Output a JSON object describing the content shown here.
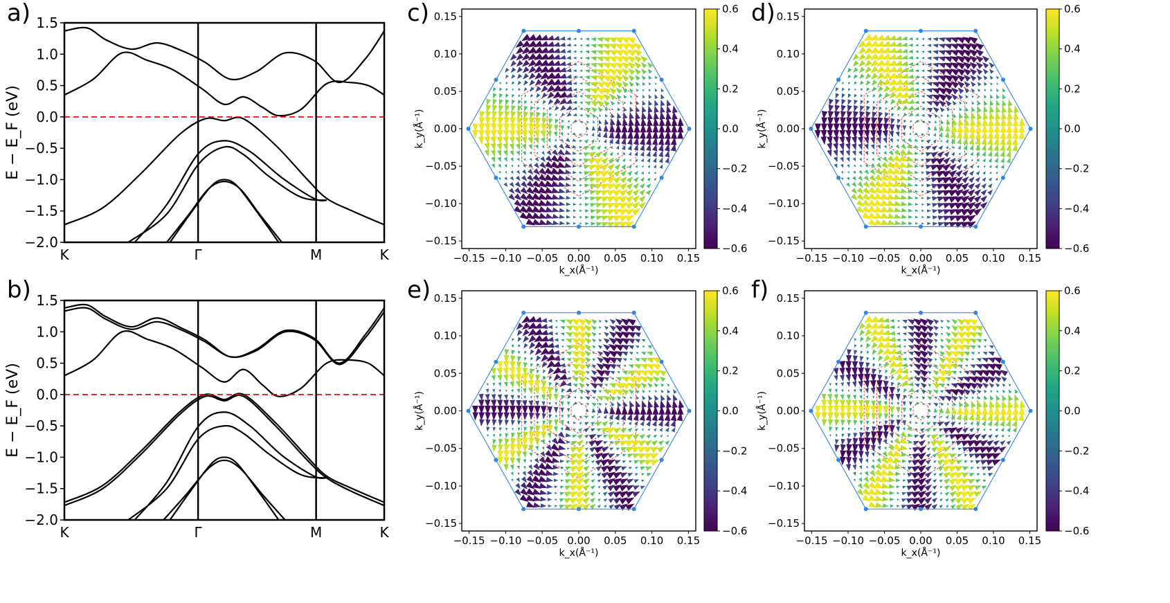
{
  "chart_data": [
    {
      "panel": "a)",
      "type": "line",
      "ylabel": "E − E_F (eV)",
      "ylim": [
        -2.0,
        1.5
      ],
      "yticks": [
        "1.5",
        "1.0",
        "0.5",
        "0.0",
        "−0.5",
        "−1.0",
        "−1.5",
        "−2.0"
      ],
      "kpoint_labels": [
        "K",
        "Γ",
        "M",
        "K"
      ],
      "fermi_level": 0.0,
      "series": [
        {
          "x": [
            0,
            0.07,
            0.13,
            0.21,
            0.29,
            0.37,
            0.44,
            0.52,
            0.6,
            0.69,
            0.78,
            0.86,
            0.94,
            1.0
          ],
          "y": [
            1.37,
            1.42,
            1.23,
            1.08,
            1.18,
            1.05,
            0.87,
            0.6,
            0.72,
            1.02,
            0.9,
            0.55,
            0.92,
            1.37
          ]
        },
        {
          "x": [
            0,
            0.09,
            0.18,
            0.26,
            0.34,
            0.43,
            0.5,
            0.56,
            0.62,
            0.67,
            0.74,
            0.82,
            0.89,
            0.95,
            1.0
          ],
          "y": [
            0.35,
            0.6,
            1.02,
            0.9,
            0.75,
            0.45,
            0.2,
            0.32,
            0.15,
            0.02,
            0.12,
            0.53,
            0.55,
            0.5,
            0.35
          ]
        },
        {
          "x": [
            0,
            0.12,
            0.24,
            0.36,
            0.44,
            0.5,
            0.56,
            0.66,
            0.76,
            0.82,
            0.9,
            1.0
          ],
          "y": [
            -1.72,
            -1.45,
            -0.9,
            -0.28,
            -0.03,
            -0.06,
            -0.03,
            -0.45,
            -1.0,
            -1.3,
            -1.5,
            -1.72
          ]
        },
        {
          "x": [
            0.22,
            0.32,
            0.42,
            0.5,
            0.58,
            0.68,
            0.78,
            0.82
          ],
          "y": [
            -2.0,
            -1.4,
            -0.58,
            -0.38,
            -0.55,
            -0.97,
            -1.3,
            -1.33
          ]
        },
        {
          "x": [
            0.2,
            0.32,
            0.42,
            0.5,
            0.56,
            0.64,
            0.74,
            0.82
          ],
          "y": [
            -2.0,
            -1.55,
            -0.75,
            -0.48,
            -0.6,
            -0.95,
            -1.28,
            -1.33
          ]
        },
        {
          "x": [
            0.33,
            0.4,
            0.46,
            0.5,
            0.54,
            0.6,
            0.67
          ],
          "y": [
            -2.0,
            -1.5,
            -1.1,
            -1.0,
            -1.1,
            -1.5,
            -2.0
          ]
        },
        {
          "x": [
            0.32,
            0.39,
            0.45,
            0.5,
            0.55,
            0.61,
            0.68
          ],
          "y": [
            -2.0,
            -1.55,
            -1.15,
            -1.03,
            -1.15,
            -1.55,
            -2.0
          ]
        }
      ]
    },
    {
      "panel": "b)",
      "type": "line",
      "ylabel": "E − E_F (eV)",
      "ylim": [
        -2.0,
        1.5
      ],
      "yticks": [
        "1.5",
        "1.0",
        "0.5",
        "0.0",
        "−0.5",
        "−1.0",
        "−1.5",
        "−2.0"
      ],
      "kpoint_labels": [
        "K",
        "Γ",
        "M",
        "K"
      ],
      "fermi_level": 0.0,
      "series": [
        {
          "x": [
            0,
            0.07,
            0.13,
            0.21,
            0.29,
            0.37,
            0.44,
            0.52,
            0.6,
            0.69,
            0.78,
            0.86,
            0.94,
            1.0
          ],
          "y": [
            1.38,
            1.43,
            1.24,
            1.08,
            1.22,
            1.05,
            0.87,
            0.6,
            0.72,
            1.02,
            0.9,
            0.5,
            0.95,
            1.38
          ]
        },
        {
          "x": [
            0,
            0.07,
            0.13,
            0.21,
            0.29,
            0.37,
            0.44,
            0.52,
            0.6,
            0.69,
            0.78,
            0.86,
            0.94,
            1.0
          ],
          "y": [
            1.33,
            1.38,
            1.2,
            1.04,
            1.16,
            1.02,
            0.84,
            0.6,
            0.7,
            1.0,
            0.88,
            0.48,
            0.9,
            1.32
          ]
        },
        {
          "x": [
            0,
            0.09,
            0.18,
            0.26,
            0.34,
            0.43,
            0.5,
            0.56,
            0.62,
            0.67,
            0.74,
            0.82,
            0.89,
            0.95,
            1.0
          ],
          "y": [
            0.3,
            0.55,
            1.0,
            0.88,
            0.73,
            0.43,
            0.2,
            0.4,
            0.15,
            -0.03,
            0.1,
            0.5,
            0.55,
            0.5,
            0.3
          ]
        },
        {
          "x": [
            0,
            0.12,
            0.24,
            0.36,
            0.44,
            0.5,
            0.56,
            0.66,
            0.76,
            0.82,
            0.9,
            1.0
          ],
          "y": [
            -1.72,
            -1.45,
            -0.9,
            -0.28,
            0.0,
            -0.08,
            0.0,
            -0.45,
            -1.0,
            -1.3,
            -1.5,
            -1.72
          ]
        },
        {
          "x": [
            0,
            0.12,
            0.24,
            0.36,
            0.44,
            0.5,
            0.56,
            0.66,
            0.76,
            0.82,
            0.9,
            1.0
          ],
          "y": [
            -1.77,
            -1.5,
            -0.95,
            -0.32,
            -0.03,
            -0.1,
            -0.03,
            -0.5,
            -1.05,
            -1.33,
            -1.55,
            -1.77
          ]
        },
        {
          "x": [
            0.22,
            0.32,
            0.42,
            0.5,
            0.58,
            0.68,
            0.78,
            0.82
          ],
          "y": [
            -2.0,
            -1.4,
            -0.5,
            -0.28,
            -0.5,
            -0.97,
            -1.3,
            -1.33
          ]
        },
        {
          "x": [
            0.2,
            0.32,
            0.42,
            0.5,
            0.56,
            0.64,
            0.74,
            0.82
          ],
          "y": [
            -2.0,
            -1.5,
            -0.7,
            -0.5,
            -0.62,
            -0.95,
            -1.28,
            -1.33
          ]
        },
        {
          "x": [
            0.33,
            0.4,
            0.46,
            0.5,
            0.54,
            0.6,
            0.67
          ],
          "y": [
            -2.0,
            -1.5,
            -1.1,
            -1.0,
            -1.1,
            -1.5,
            -2.0
          ]
        },
        {
          "x": [
            0.31,
            0.38,
            0.45,
            0.5,
            0.55,
            0.62,
            0.69
          ],
          "y": [
            -2.0,
            -1.6,
            -1.18,
            -1.05,
            -1.18,
            -1.6,
            -2.0
          ]
        }
      ]
    },
    {
      "panel": "c)",
      "type": "quiver",
      "xlabel": "k_x(Å⁻¹)",
      "ylabel": "k_y(Å⁻¹)",
      "xlim": [
        -0.16,
        0.16
      ],
      "ylim": [
        -0.16,
        0.16
      ],
      "xticks": [
        "−0.15",
        "−0.10",
        "−0.05",
        "0.00",
        "0.05",
        "0.10",
        "0.15"
      ],
      "yticks": [
        "0.15",
        "0.10",
        "0.05",
        "0.00",
        "−0.05",
        "−0.10",
        "−0.15"
      ],
      "colorbar": {
        "range": [
          -0.6,
          0.6
        ],
        "ticks": [
          "0.6",
          "0.4",
          "0.2",
          "0.0",
          "−0.2",
          "−0.4",
          "−0.6"
        ],
        "colormap": "viridis"
      },
      "brillouin_zone_radius": 0.151,
      "sign_pattern": "sin3phi",
      "sign": 1
    },
    {
      "panel": "d)",
      "type": "quiver",
      "xlabel": "k_x(Å⁻¹)",
      "ylabel": "k_y(Å⁻¹)",
      "xlim": [
        -0.16,
        0.16
      ],
      "ylim": [
        -0.16,
        0.16
      ],
      "xticks": [
        "−0.15",
        "−0.10",
        "−0.05",
        "0.00",
        "0.05",
        "0.10",
        "0.15"
      ],
      "yticks": [
        "0.15",
        "0.10",
        "0.05",
        "0.00",
        "−0.05",
        "−0.10",
        "−0.15"
      ],
      "colorbar": {
        "range": [
          -0.6,
          0.6
        ],
        "ticks": [
          "0.6",
          "0.4",
          "0.2",
          "0.0",
          "−0.2",
          "−0.4",
          "−0.6"
        ],
        "colormap": "viridis"
      },
      "brillouin_zone_radius": 0.151,
      "sign_pattern": "sin3phi",
      "sign": -1
    },
    {
      "panel": "e)",
      "type": "quiver",
      "xlabel": "k_x(Å⁻¹)",
      "ylabel": "k_y(Å⁻¹)",
      "xlim": [
        -0.16,
        0.16
      ],
      "ylim": [
        -0.16,
        0.16
      ],
      "xticks": [
        "−0.15",
        "−0.10",
        "−0.05",
        "0.00",
        "0.05",
        "0.10",
        "0.15"
      ],
      "yticks": [
        "0.15",
        "0.10",
        "0.05",
        "0.00",
        "−0.05",
        "−0.10",
        "−0.15"
      ],
      "colorbar": {
        "range": [
          -0.6,
          0.6
        ],
        "ticks": [
          "0.6",
          "0.4",
          "0.2",
          "0.0",
          "−0.2",
          "−0.4",
          "−0.6"
        ],
        "colormap": "viridis"
      },
      "brillouin_zone_radius": 0.151,
      "sign_pattern": "cos6phi",
      "sign": 1
    },
    {
      "panel": "f)",
      "type": "quiver",
      "xlabel": "k_x(Å⁻¹)",
      "ylabel": "k_y(Å⁻¹)",
      "xlim": [
        -0.16,
        0.16
      ],
      "ylim": [
        -0.16,
        0.16
      ],
      "xticks": [
        "−0.15",
        "−0.10",
        "−0.05",
        "0.00",
        "0.05",
        "0.10",
        "0.15"
      ],
      "yticks": [
        "0.15",
        "0.10",
        "0.05",
        "0.00",
        "−0.05",
        "−0.10",
        "−0.15"
      ],
      "colorbar": {
        "range": [
          -0.6,
          0.6
        ],
        "ticks": [
          "0.6",
          "0.4",
          "0.2",
          "0.0",
          "−0.2",
          "−0.4",
          "−0.6"
        ],
        "colormap": "viridis"
      },
      "brillouin_zone_radius": 0.151,
      "sign_pattern": "cos6phi",
      "sign": -1
    }
  ]
}
